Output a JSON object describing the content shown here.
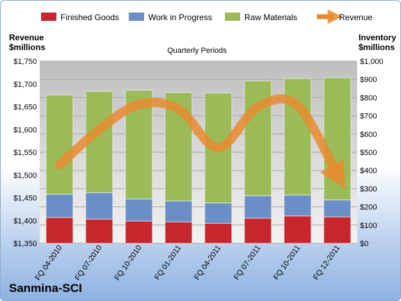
{
  "company": "Sanmina-SCI",
  "chart_data": {
    "type": "bar",
    "stacked": true,
    "subtitle": "Quarterly Periods",
    "categories": [
      "FQ 04-2010",
      "FQ 07-2010",
      "FQ 10-2010",
      "FQ 01-2011",
      "FQ 04-2011",
      "FQ 07-2011",
      "FQ 10-2011",
      "FQ 12-2011"
    ],
    "left_axis": {
      "label_line1": "Revenue",
      "label_line2": "$millions",
      "ylim": [
        1350,
        1750
      ],
      "ticks": [
        "$1,350",
        "$1,400",
        "$1,450",
        "$1,500",
        "$1,550",
        "$1,600",
        "$1,650",
        "$1,700",
        "$1,750"
      ]
    },
    "right_axis": {
      "label_line1": "Inventory",
      "label_line2": "$millions",
      "ylim": [
        0,
        1000
      ],
      "ticks": [
        "$0",
        "$100",
        "$200",
        "$300",
        "$400",
        "$500",
        "$600",
        "$700",
        "$800",
        "$900",
        "$1,000"
      ]
    },
    "series": [
      {
        "name": "Finished Goods",
        "color": "#c8262d",
        "axis": "right",
        "values": [
          142,
          133,
          122,
          118,
          110,
          138,
          150,
          145
        ]
      },
      {
        "name": "Work in Progress",
        "color": "#6a8ec6",
        "axis": "right",
        "values": [
          128,
          145,
          122,
          115,
          112,
          123,
          115,
          93
        ]
      },
      {
        "name": "Raw Materials",
        "color": "#9bbb59",
        "axis": "right",
        "values": [
          544,
          556,
          596,
          595,
          603,
          631,
          640,
          671
        ]
      },
      {
        "name": "Revenue",
        "color": "#e88b2f",
        "axis": "left",
        "type": "line",
        "values": [
          1522,
          1600,
          1655,
          1645,
          1560,
          1650,
          1653,
          1500
        ]
      }
    ],
    "grid": true,
    "legend": "top"
  }
}
